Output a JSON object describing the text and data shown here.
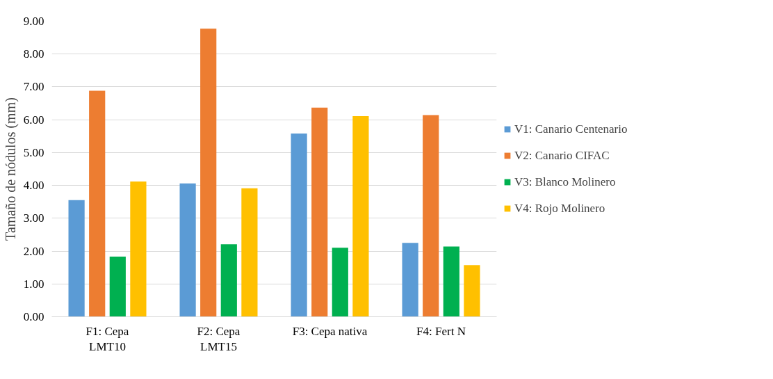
{
  "chart_data": {
    "type": "bar",
    "ylabel": "Tamaño de nódulos (mm)",
    "categories": [
      "F1: Cepa\nLMT10",
      "F2: Cepa\nLMT15",
      "F3: Cepa nativa",
      "F4: Fert N"
    ],
    "series": [
      {
        "name": "V1: Canario Centenario",
        "color": "#5b9bd5",
        "values": [
          3.55,
          4.06,
          5.58,
          2.25
        ]
      },
      {
        "name": "V2: Canario CIFAC",
        "color": "#ed7d31",
        "values": [
          6.88,
          8.77,
          6.37,
          6.14
        ]
      },
      {
        "name": "V3: Blanco Molinero",
        "color": "#00b050",
        "values": [
          1.83,
          2.21,
          2.1,
          2.14
        ]
      },
      {
        "name": "V4: Rojo Molinero",
        "color": "#ffc000",
        "values": [
          4.12,
          3.91,
          6.11,
          1.57
        ]
      }
    ],
    "ylim": [
      0,
      9
    ],
    "yticks": [
      {
        "value": 0,
        "label": "0.00"
      },
      {
        "value": 1,
        "label": "1.00"
      },
      {
        "value": 2,
        "label": "2.00"
      },
      {
        "value": 3,
        "label": "3.00"
      },
      {
        "value": 4,
        "label": "4.00"
      },
      {
        "value": 5,
        "label": "5.00"
      },
      {
        "value": 6,
        "label": "6.00"
      },
      {
        "value": 7,
        "label": "7.00"
      },
      {
        "value": 8,
        "label": "8.00"
      },
      {
        "value": 9,
        "label": "9.00"
      }
    ],
    "grid": "y",
    "legend": "right"
  }
}
